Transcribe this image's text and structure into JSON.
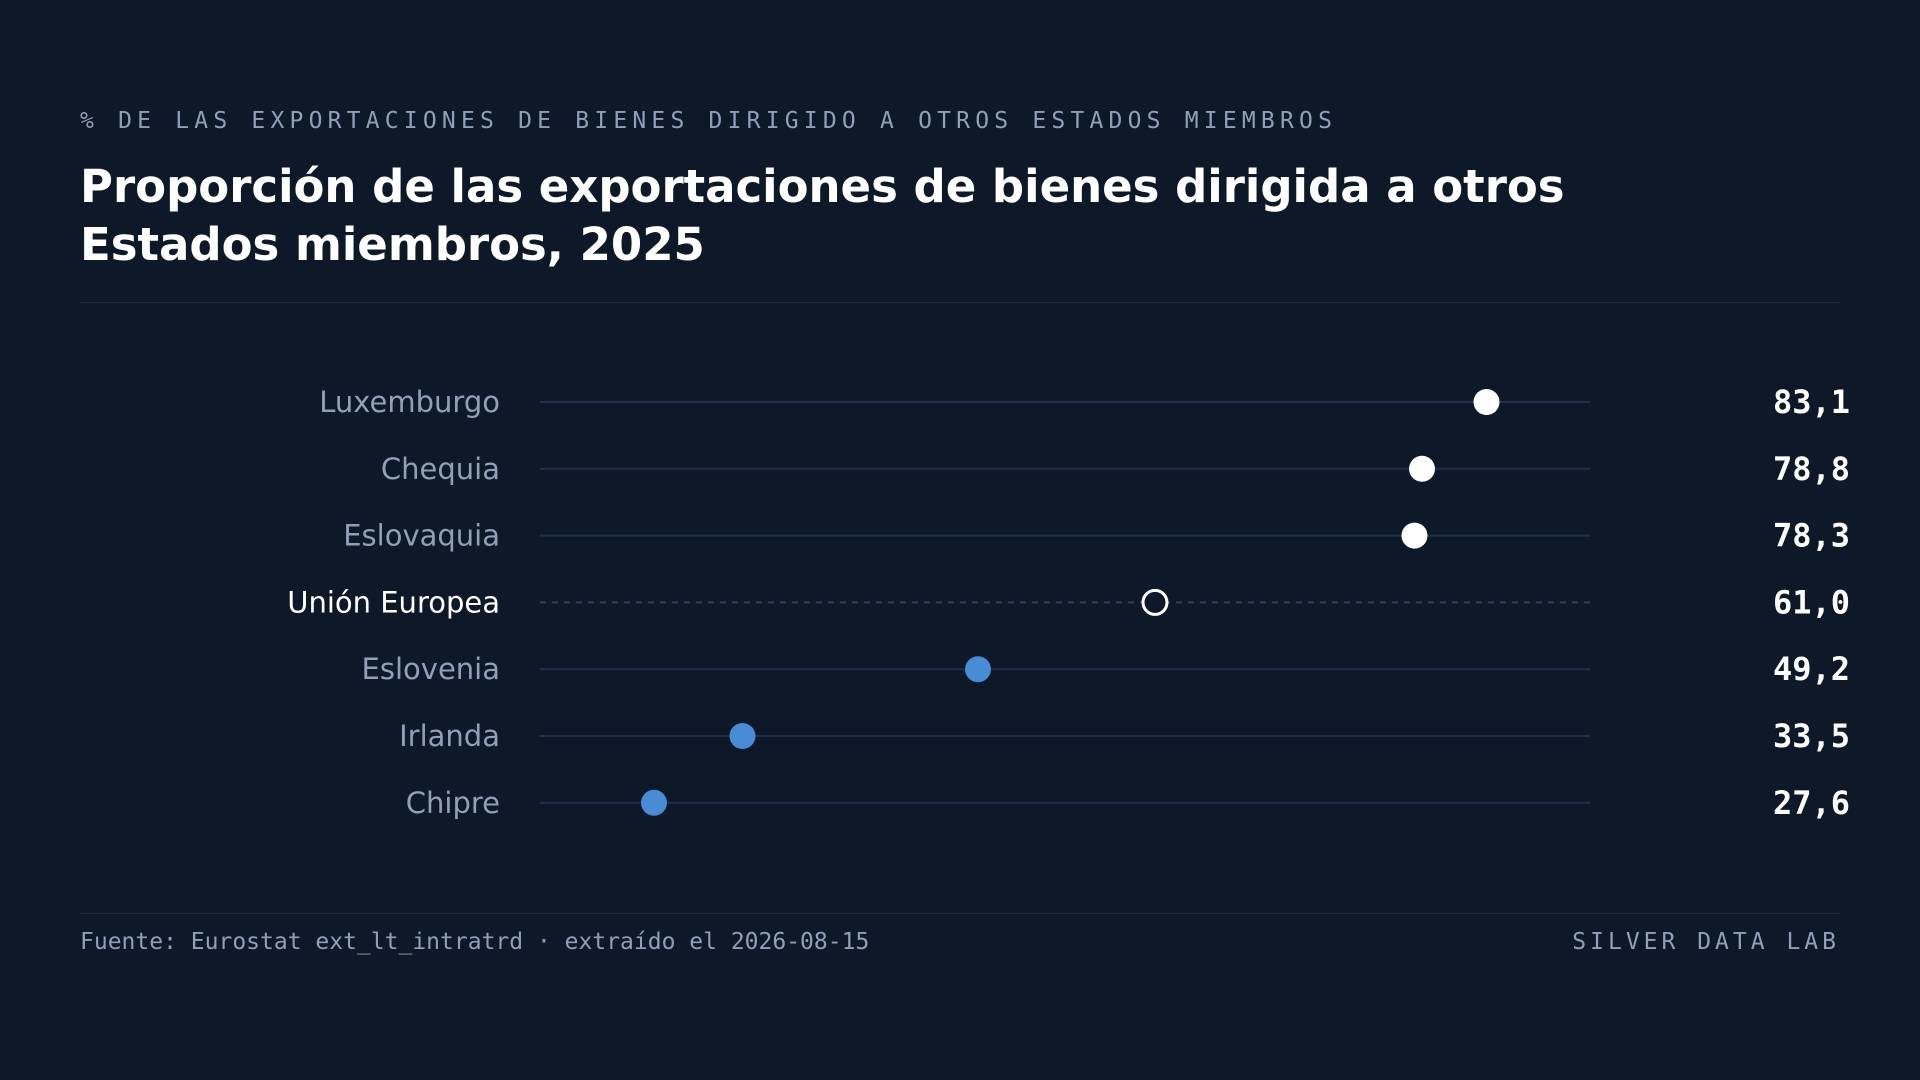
{
  "eyebrow": "% DE LAS EXPORTACIONES DE BIENES DIRIGIDO A OTROS ESTADOS MIEMBROS",
  "title": "Proporción de las exportaciones de bienes dirigida a otros Estados miembros, 2025",
  "footer": {
    "source": "Fuente: Eurostat ext_lt_intratrd · extraído el 2026-08-15",
    "brand": "SILVER DATA LAB"
  },
  "colors": {
    "background": "#0d1829",
    "highlight_dot": "#ffffff",
    "low_dot": "#4a8bd6",
    "reference_stroke": "#ffffff",
    "track": "#1e3148",
    "label": "#8fa0b8",
    "reference_label": "#ffffff",
    "value": "#ffffff"
  },
  "chart_data": {
    "type": "dot",
    "title": "Proporción de las exportaciones de bienes dirigida a otros Estados miembros, 2025",
    "subtitle": "% DE LAS EXPORTACIONES DE BIENES DIRIGIDO A OTROS ESTADOS MIEMBROS",
    "xlim": [
      20,
      90
    ],
    "grid": false,
    "categories": [
      "Luxemburgo",
      "Chequia",
      "Eslovaquia",
      "Unión Europea",
      "Eslovenia",
      "Irlanda",
      "Chipre"
    ],
    "values": [
      83.1,
      78.8,
      78.3,
      61.0,
      49.2,
      33.5,
      27.6
    ],
    "value_labels": [
      "83,1",
      "78,8",
      "78,3",
      "61,0",
      "49,2",
      "33,5",
      "27,6"
    ],
    "reference": "Unión Europea"
  }
}
